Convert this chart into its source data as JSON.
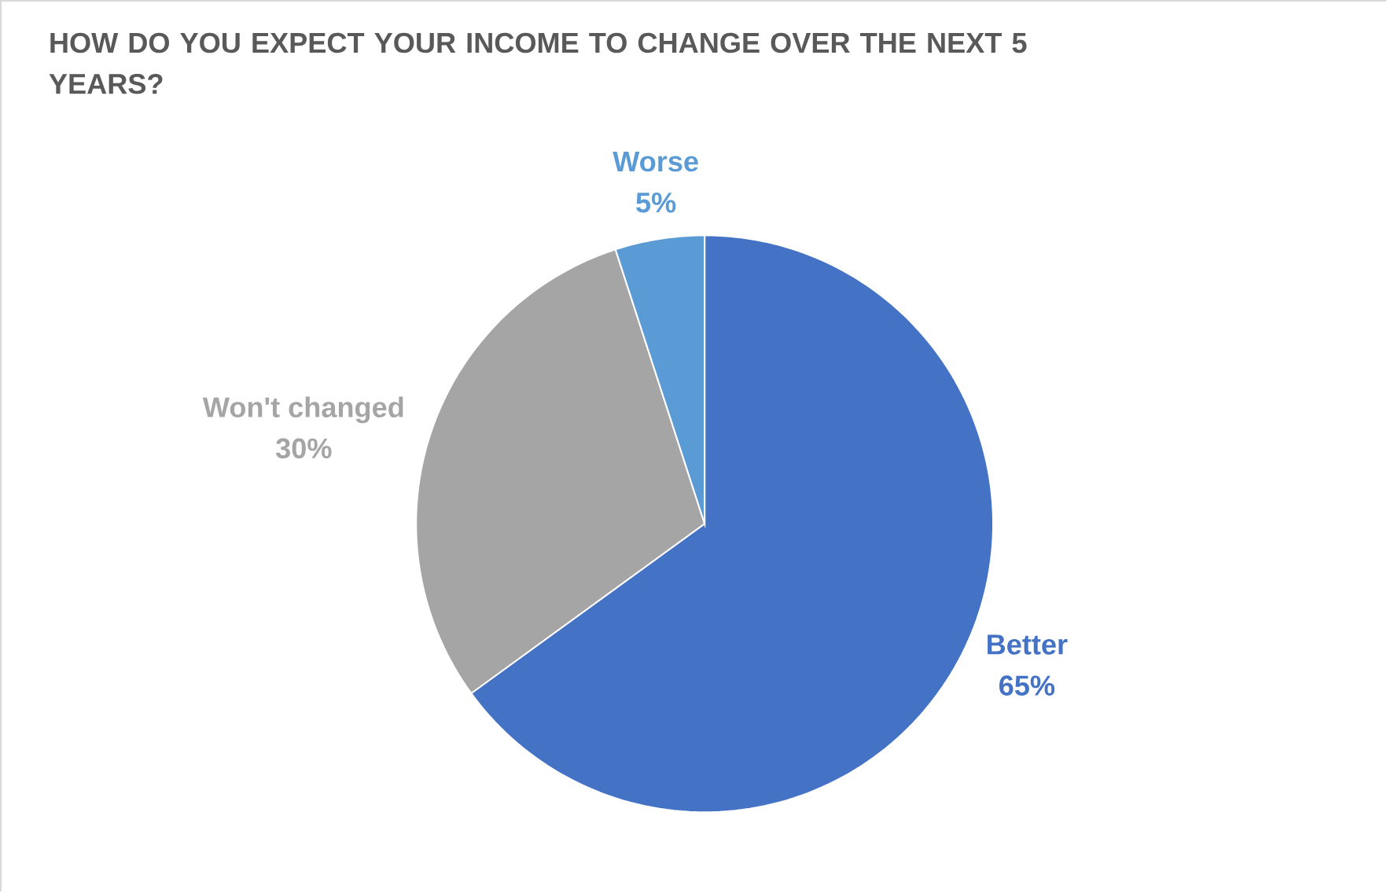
{
  "chart_data": {
    "type": "pie",
    "title": "HOW DO YOU EXPECT YOUR INCOME TO CHANGE OVER THE NEXT 5 YEARS?",
    "categories": [
      "Better",
      "Won't changed",
      "Worse"
    ],
    "values": [
      65,
      30,
      5
    ],
    "colors": [
      "#4472c4",
      "#a5a5a5",
      "#5b9bd5"
    ],
    "value_labels": [
      "65%",
      "30%",
      "5%"
    ],
    "legend": false
  }
}
